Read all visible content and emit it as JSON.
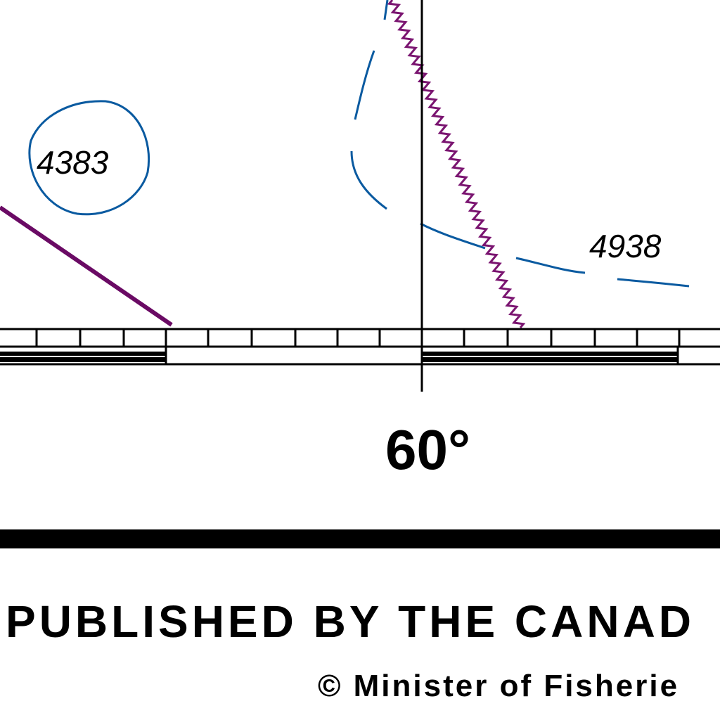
{
  "map": {
    "soundings": [
      "4383",
      "4938"
    ],
    "meridian_label": "60°",
    "publisher_line": "PUBLISHED BY THE CANAD",
    "copyright_line": "© Minister of Fisherie"
  }
}
